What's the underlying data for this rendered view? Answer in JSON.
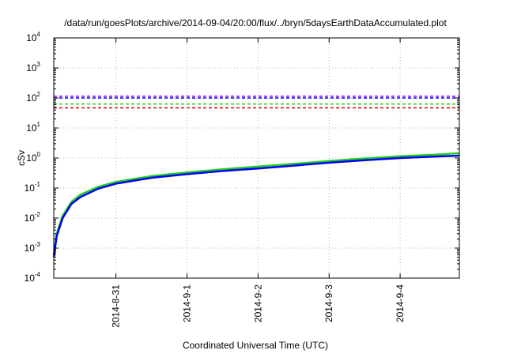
{
  "chart_data": {
    "type": "line",
    "title": "/data/run/goesPlots/archive/2014-09-04/20:00/flux/../bryn/5daysEarthDataAccumulated.plot",
    "xlabel": "Coordinated Universal Time (UTC)",
    "ylabel": "cSv",
    "yscale": "log",
    "ylim": [
      0.0001,
      10000
    ],
    "xlim": [
      "2014-08-30 03:00",
      "2014-09-04 20:00"
    ],
    "grid": true,
    "legend": "none",
    "x_ticks": [
      "2014-8-31",
      "2014-9-1",
      "2014-9-2",
      "2014-9-3",
      "2014-9-4"
    ],
    "y_ticks": [
      {
        "value": 0.0001,
        "base": "10",
        "exp": "-4"
      },
      {
        "value": 0.001,
        "base": "10",
        "exp": "-3"
      },
      {
        "value": 0.01,
        "base": "10",
        "exp": "-2"
      },
      {
        "value": 0.1,
        "base": "10",
        "exp": "-1"
      },
      {
        "value": 1,
        "base": "10",
        "exp": "0"
      },
      {
        "value": 10,
        "base": "10",
        "exp": "1"
      },
      {
        "value": 100,
        "base": "10",
        "exp": "2"
      },
      {
        "value": 1000,
        "base": "10",
        "exp": "3"
      },
      {
        "value": 10000,
        "base": "10",
        "exp": "4"
      }
    ],
    "reference_lines": [
      {
        "value": 115,
        "color": "#9400d3",
        "style": "dashed"
      },
      {
        "value": 100,
        "color": "#0000ff",
        "style": "dashed"
      },
      {
        "value": 63,
        "color": "#22cc22",
        "style": "dashed"
      },
      {
        "value": 47,
        "color": "#e00000",
        "style": "dashed"
      }
    ],
    "series": [
      {
        "color": "#22cc22",
        "x": [
          "2014-08-30 03:00",
          "2014-08-30 04:00",
          "2014-08-30 06:00",
          "2014-08-30 09:00",
          "2014-08-30 12:00",
          "2014-08-30 18:00",
          "2014-08-31 00:00",
          "2014-08-31 12:00",
          "2014-09-01 00:00",
          "2014-09-01 12:00",
          "2014-09-02 00:00",
          "2014-09-02 12:00",
          "2014-09-03 00:00",
          "2014-09-03 12:00",
          "2014-09-04 00:00",
          "2014-09-04 12:00",
          "2014-09-04 20:00"
        ],
        "y": [
          0.0006,
          0.003,
          0.012,
          0.035,
          0.06,
          0.11,
          0.16,
          0.25,
          0.33,
          0.42,
          0.52,
          0.64,
          0.8,
          0.97,
          1.15,
          1.3,
          1.45
        ]
      },
      {
        "color": "#0000ff",
        "x": [
          "2014-08-30 03:00",
          "2014-08-30 04:00",
          "2014-08-30 06:00",
          "2014-08-30 09:00",
          "2014-08-30 12:00",
          "2014-08-30 18:00",
          "2014-08-31 00:00",
          "2014-08-31 12:00",
          "2014-09-01 00:00",
          "2014-09-01 12:00",
          "2014-09-02 00:00",
          "2014-09-02 12:00",
          "2014-09-03 00:00",
          "2014-09-03 12:00",
          "2014-09-04 00:00",
          "2014-09-04 12:00",
          "2014-09-04 20:00"
        ],
        "y": [
          0.0005,
          0.0025,
          0.01,
          0.03,
          0.05,
          0.095,
          0.14,
          0.22,
          0.29,
          0.37,
          0.45,
          0.56,
          0.7,
          0.85,
          1.0,
          1.12,
          1.2
        ]
      }
    ]
  }
}
